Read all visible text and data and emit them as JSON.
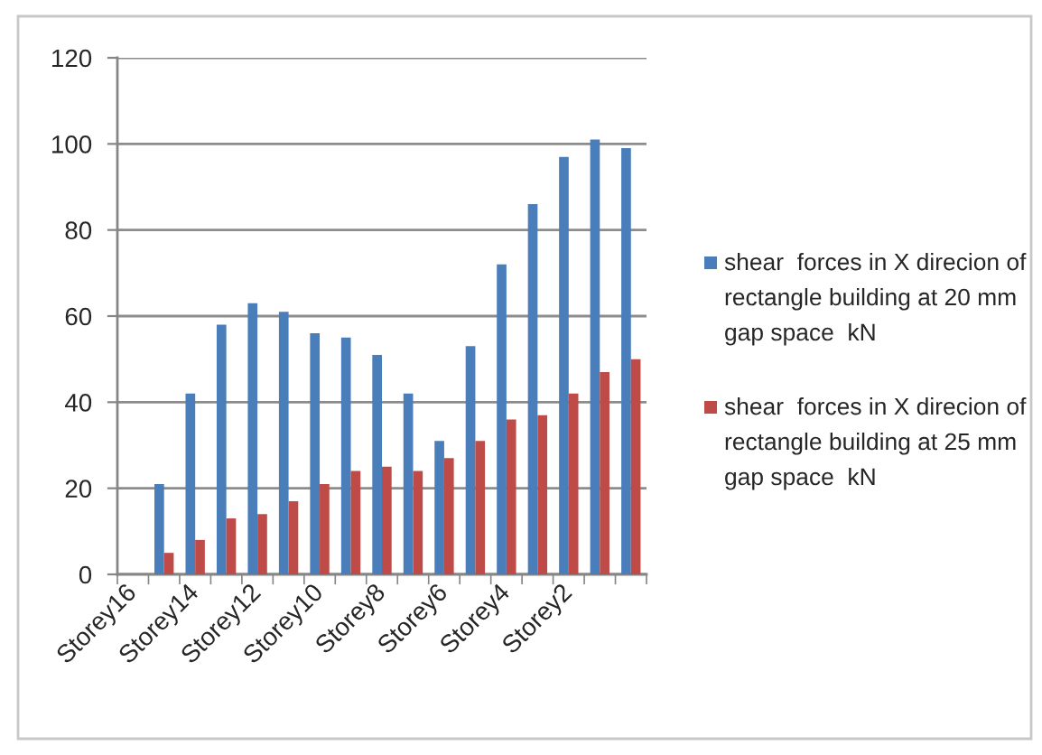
{
  "chart_data": {
    "type": "bar",
    "categories": [
      "Storey16",
      null,
      "Storey14",
      null,
      "Storey12",
      null,
      "Storey10",
      null,
      "Storey8",
      null,
      "Storey6",
      null,
      "Storey4",
      null,
      "Storey2",
      null,
      null
    ],
    "series": [
      {
        "name": "shear  forces in X direcion of rectangle building at 20 mm gap space  kN",
        "color": "#4a7ebb",
        "values": [
          null,
          21,
          42,
          58,
          63,
          61,
          56,
          55,
          51,
          42,
          31,
          53,
          72,
          86,
          97,
          101,
          99
        ]
      },
      {
        "name": "shear  forces in X direcion of rectangle building at 25 mm gap space  kN",
        "color": "#be4b48",
        "values": [
          null,
          5,
          8,
          13,
          14,
          17,
          21,
          24,
          25,
          24,
          27,
          31,
          36,
          37,
          42,
          47,
          50
        ]
      }
    ],
    "ylim": [
      0,
      120
    ],
    "yticks": [
      0,
      20,
      40,
      60,
      80,
      100,
      120
    ],
    "grid": "y",
    "legend": "right"
  }
}
